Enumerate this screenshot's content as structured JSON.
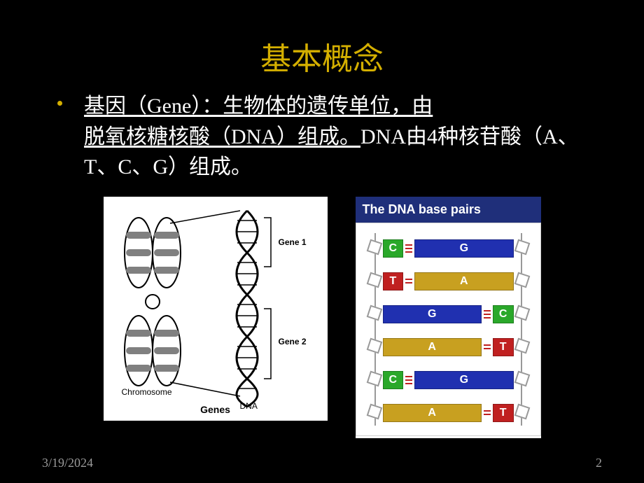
{
  "title": "基本概念",
  "bullet": {
    "part1": "基因（Gene）：生物体的遗传单位，由",
    "part2": "脱氧核糖核酸（DNA）组成。",
    "part3": "DNA由4种核苷酸（A、T、C、G）组成。"
  },
  "footer": {
    "date": "3/19/2024",
    "page": "2"
  },
  "colors": {
    "title": "#d4af00",
    "text": "#ffffff",
    "bg": "#000000",
    "footer": "#9a9a9a",
    "base_C": "#2aa82a",
    "base_G": "#2030b0",
    "base_T": "#c02020",
    "base_A": "#c8a020",
    "dna_header_bg": "#1f2f7a"
  },
  "genes_fig": {
    "caption": "Genes",
    "chromosome_label": "Chromosome",
    "dna_label": "DNA",
    "gene1_label": "Gene 1",
    "gene2_label": "Gene 2"
  },
  "dna_fig": {
    "header": "The DNA base pairs",
    "rungs": [
      {
        "left": {
          "b": "C",
          "size": "small",
          "color": "#2aa82a"
        },
        "right": {
          "b": "G",
          "size": "big",
          "color": "#2030b0"
        },
        "bonds": 3
      },
      {
        "left": {
          "b": "T",
          "size": "small",
          "color": "#c02020"
        },
        "right": {
          "b": "A",
          "size": "big",
          "color": "#c8a020"
        },
        "bonds": 2
      },
      {
        "left": {
          "b": "G",
          "size": "big",
          "color": "#2030b0"
        },
        "right": {
          "b": "C",
          "size": "small",
          "color": "#2aa82a"
        },
        "bonds": 3
      },
      {
        "left": {
          "b": "A",
          "size": "big",
          "color": "#c8a020"
        },
        "right": {
          "b": "T",
          "size": "small",
          "color": "#c02020"
        },
        "bonds": 2
      },
      {
        "left": {
          "b": "C",
          "size": "small",
          "color": "#2aa82a"
        },
        "right": {
          "b": "G",
          "size": "big",
          "color": "#2030b0"
        },
        "bonds": 3
      },
      {
        "left": {
          "b": "A",
          "size": "big",
          "color": "#c8a020"
        },
        "right": {
          "b": "T",
          "size": "small",
          "color": "#c02020"
        },
        "bonds": 2
      }
    ],
    "rung_top_start": 22,
    "rung_gap": 47
  }
}
